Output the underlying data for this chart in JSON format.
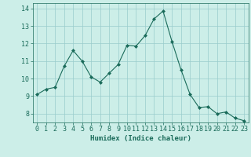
{
  "x": [
    0,
    1,
    2,
    3,
    4,
    5,
    6,
    7,
    8,
    9,
    10,
    11,
    12,
    13,
    14,
    15,
    16,
    17,
    18,
    19,
    20,
    21,
    22,
    23
  ],
  "y": [
    9.1,
    9.4,
    9.5,
    10.7,
    11.6,
    11.0,
    10.1,
    9.8,
    10.3,
    10.8,
    11.9,
    11.85,
    12.45,
    13.4,
    13.85,
    12.1,
    10.5,
    9.1,
    8.35,
    8.4,
    8.0,
    8.1,
    7.75,
    7.6
  ],
  "line_color": "#1a6b5a",
  "marker": "D",
  "marker_size": 2.0,
  "bg_color": "#cceee8",
  "grid_color": "#99cccc",
  "xlabel": "Humidex (Indice chaleur)",
  "ylim": [
    7.5,
    14.3
  ],
  "xlim": [
    -0.5,
    23.5
  ],
  "yticks": [
    8,
    9,
    10,
    11,
    12,
    13,
    14
  ],
  "xticks": [
    0,
    1,
    2,
    3,
    4,
    5,
    6,
    7,
    8,
    9,
    10,
    11,
    12,
    13,
    14,
    15,
    16,
    17,
    18,
    19,
    20,
    21,
    22,
    23
  ],
  "xlabel_fontsize": 6.5,
  "tick_fontsize": 6.0,
  "tick_color": "#1a6b5a",
  "label_color": "#1a6b5a"
}
